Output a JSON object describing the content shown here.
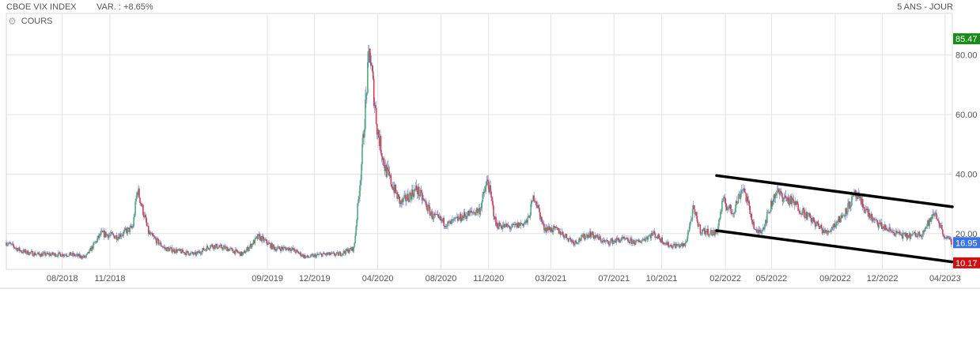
{
  "header": {
    "instrument": "CBOE VIX INDEX",
    "change": "VAR. : +8.65%",
    "period": "5 ANS - JOUR"
  },
  "legend": {
    "gear_icon": "gear-icon",
    "label": "COURS"
  },
  "colors": {
    "up": "#4caf7d",
    "down": "#d83a5a",
    "wick": "#6f7fb0",
    "grid": "#e3e3e3",
    "high_badge": "#1a8a1a",
    "last_badge": "#3b73e0",
    "low_badge": "#cc1111",
    "trendline": "#000000"
  },
  "chart_data": {
    "type": "candlestick",
    "title": "CBOE VIX INDEX",
    "xlabel": "",
    "ylabel": "",
    "ylim": [
      8,
      94
    ],
    "y_ticks": [
      20,
      40,
      60,
      80
    ],
    "y_tick_labels": [
      "20.00",
      "40.00",
      "60.00",
      "80.00"
    ],
    "x_range": [
      "2018-04-15",
      "2023-04-15"
    ],
    "x_ticks": [
      "2018-08",
      "2018-11",
      "2019-09",
      "2019-12",
      "2020-04",
      "2020-08",
      "2020-11",
      "2021-03",
      "2021-07",
      "2021-10",
      "2022-02",
      "2022-05",
      "2022-09",
      "2022-12",
      "2023-04"
    ],
    "x_tick_labels": [
      "08/2018",
      "11/2018",
      "09/2019",
      "12/2019",
      "04/2020",
      "08/2020",
      "11/2020",
      "03/2021",
      "07/2021",
      "10/2021",
      "02/2022",
      "05/2022",
      "09/2022",
      "12/2022",
      "04/2023"
    ],
    "grid": true,
    "badges": {
      "high": "85.47",
      "last": "16.95",
      "low": "10.17"
    },
    "series": [
      {
        "name": "COURS",
        "points": [
          [
            "2018-04-15",
            17
          ],
          [
            "2018-05-15",
            14
          ],
          [
            "2018-06-15",
            13
          ],
          [
            "2018-07-15",
            13
          ],
          [
            "2018-08-15",
            13
          ],
          [
            "2018-09-15",
            12
          ],
          [
            "2018-10-15",
            20
          ],
          [
            "2018-11-15",
            19
          ],
          [
            "2018-12-15",
            22
          ],
          [
            "2018-12-24",
            35
          ],
          [
            "2019-01-15",
            20
          ],
          [
            "2019-02-15",
            15
          ],
          [
            "2019-03-15",
            14
          ],
          [
            "2019-04-15",
            13
          ],
          [
            "2019-05-15",
            16
          ],
          [
            "2019-06-15",
            15
          ],
          [
            "2019-07-15",
            13
          ],
          [
            "2019-08-15",
            19
          ],
          [
            "2019-09-15",
            15
          ],
          [
            "2019-10-15",
            15
          ],
          [
            "2019-11-15",
            12
          ],
          [
            "2019-12-15",
            13
          ],
          [
            "2020-01-15",
            13
          ],
          [
            "2020-02-15",
            15
          ],
          [
            "2020-02-28",
            40
          ],
          [
            "2020-03-16",
            82
          ],
          [
            "2020-03-31",
            55
          ],
          [
            "2020-04-15",
            42
          ],
          [
            "2020-05-15",
            30
          ],
          [
            "2020-06-15",
            35
          ],
          [
            "2020-07-15",
            26
          ],
          [
            "2020-08-15",
            23
          ],
          [
            "2020-09-15",
            26
          ],
          [
            "2020-10-15",
            28
          ],
          [
            "2020-10-30",
            38
          ],
          [
            "2020-11-15",
            23
          ],
          [
            "2020-12-15",
            22
          ],
          [
            "2021-01-15",
            24
          ],
          [
            "2021-01-28",
            33
          ],
          [
            "2021-02-15",
            22
          ],
          [
            "2021-03-15",
            21
          ],
          [
            "2021-04-15",
            17
          ],
          [
            "2021-05-15",
            20
          ],
          [
            "2021-06-15",
            17
          ],
          [
            "2021-07-15",
            18
          ],
          [
            "2021-08-15",
            17
          ],
          [
            "2021-09-15",
            20
          ],
          [
            "2021-10-15",
            16
          ],
          [
            "2021-11-15",
            16
          ],
          [
            "2021-12-01",
            28
          ],
          [
            "2021-12-15",
            21
          ],
          [
            "2022-01-15",
            20
          ],
          [
            "2022-01-27",
            31
          ],
          [
            "2022-02-15",
            27
          ],
          [
            "2022-03-07",
            36
          ],
          [
            "2022-04-01",
            20
          ],
          [
            "2022-04-15",
            22
          ],
          [
            "2022-05-09",
            34
          ],
          [
            "2022-06-15",
            30
          ],
          [
            "2022-07-15",
            25
          ],
          [
            "2022-08-15",
            20
          ],
          [
            "2022-09-15",
            26
          ],
          [
            "2022-10-10",
            33
          ],
          [
            "2022-11-15",
            24
          ],
          [
            "2022-12-15",
            21
          ],
          [
            "2023-01-15",
            19
          ],
          [
            "2023-02-15",
            20
          ],
          [
            "2023-03-13",
            27
          ],
          [
            "2023-03-31",
            19
          ],
          [
            "2023-04-14",
            16.95
          ]
        ]
      }
    ],
    "annotations": [
      {
        "type": "trendline",
        "from": [
          "2022-01-15",
          39.5
        ],
        "to": [
          "2023-04-15",
          29
        ]
      },
      {
        "type": "trendline",
        "from": [
          "2022-01-15",
          21
        ],
        "to": [
          "2023-04-15",
          10.5
        ]
      }
    ]
  }
}
